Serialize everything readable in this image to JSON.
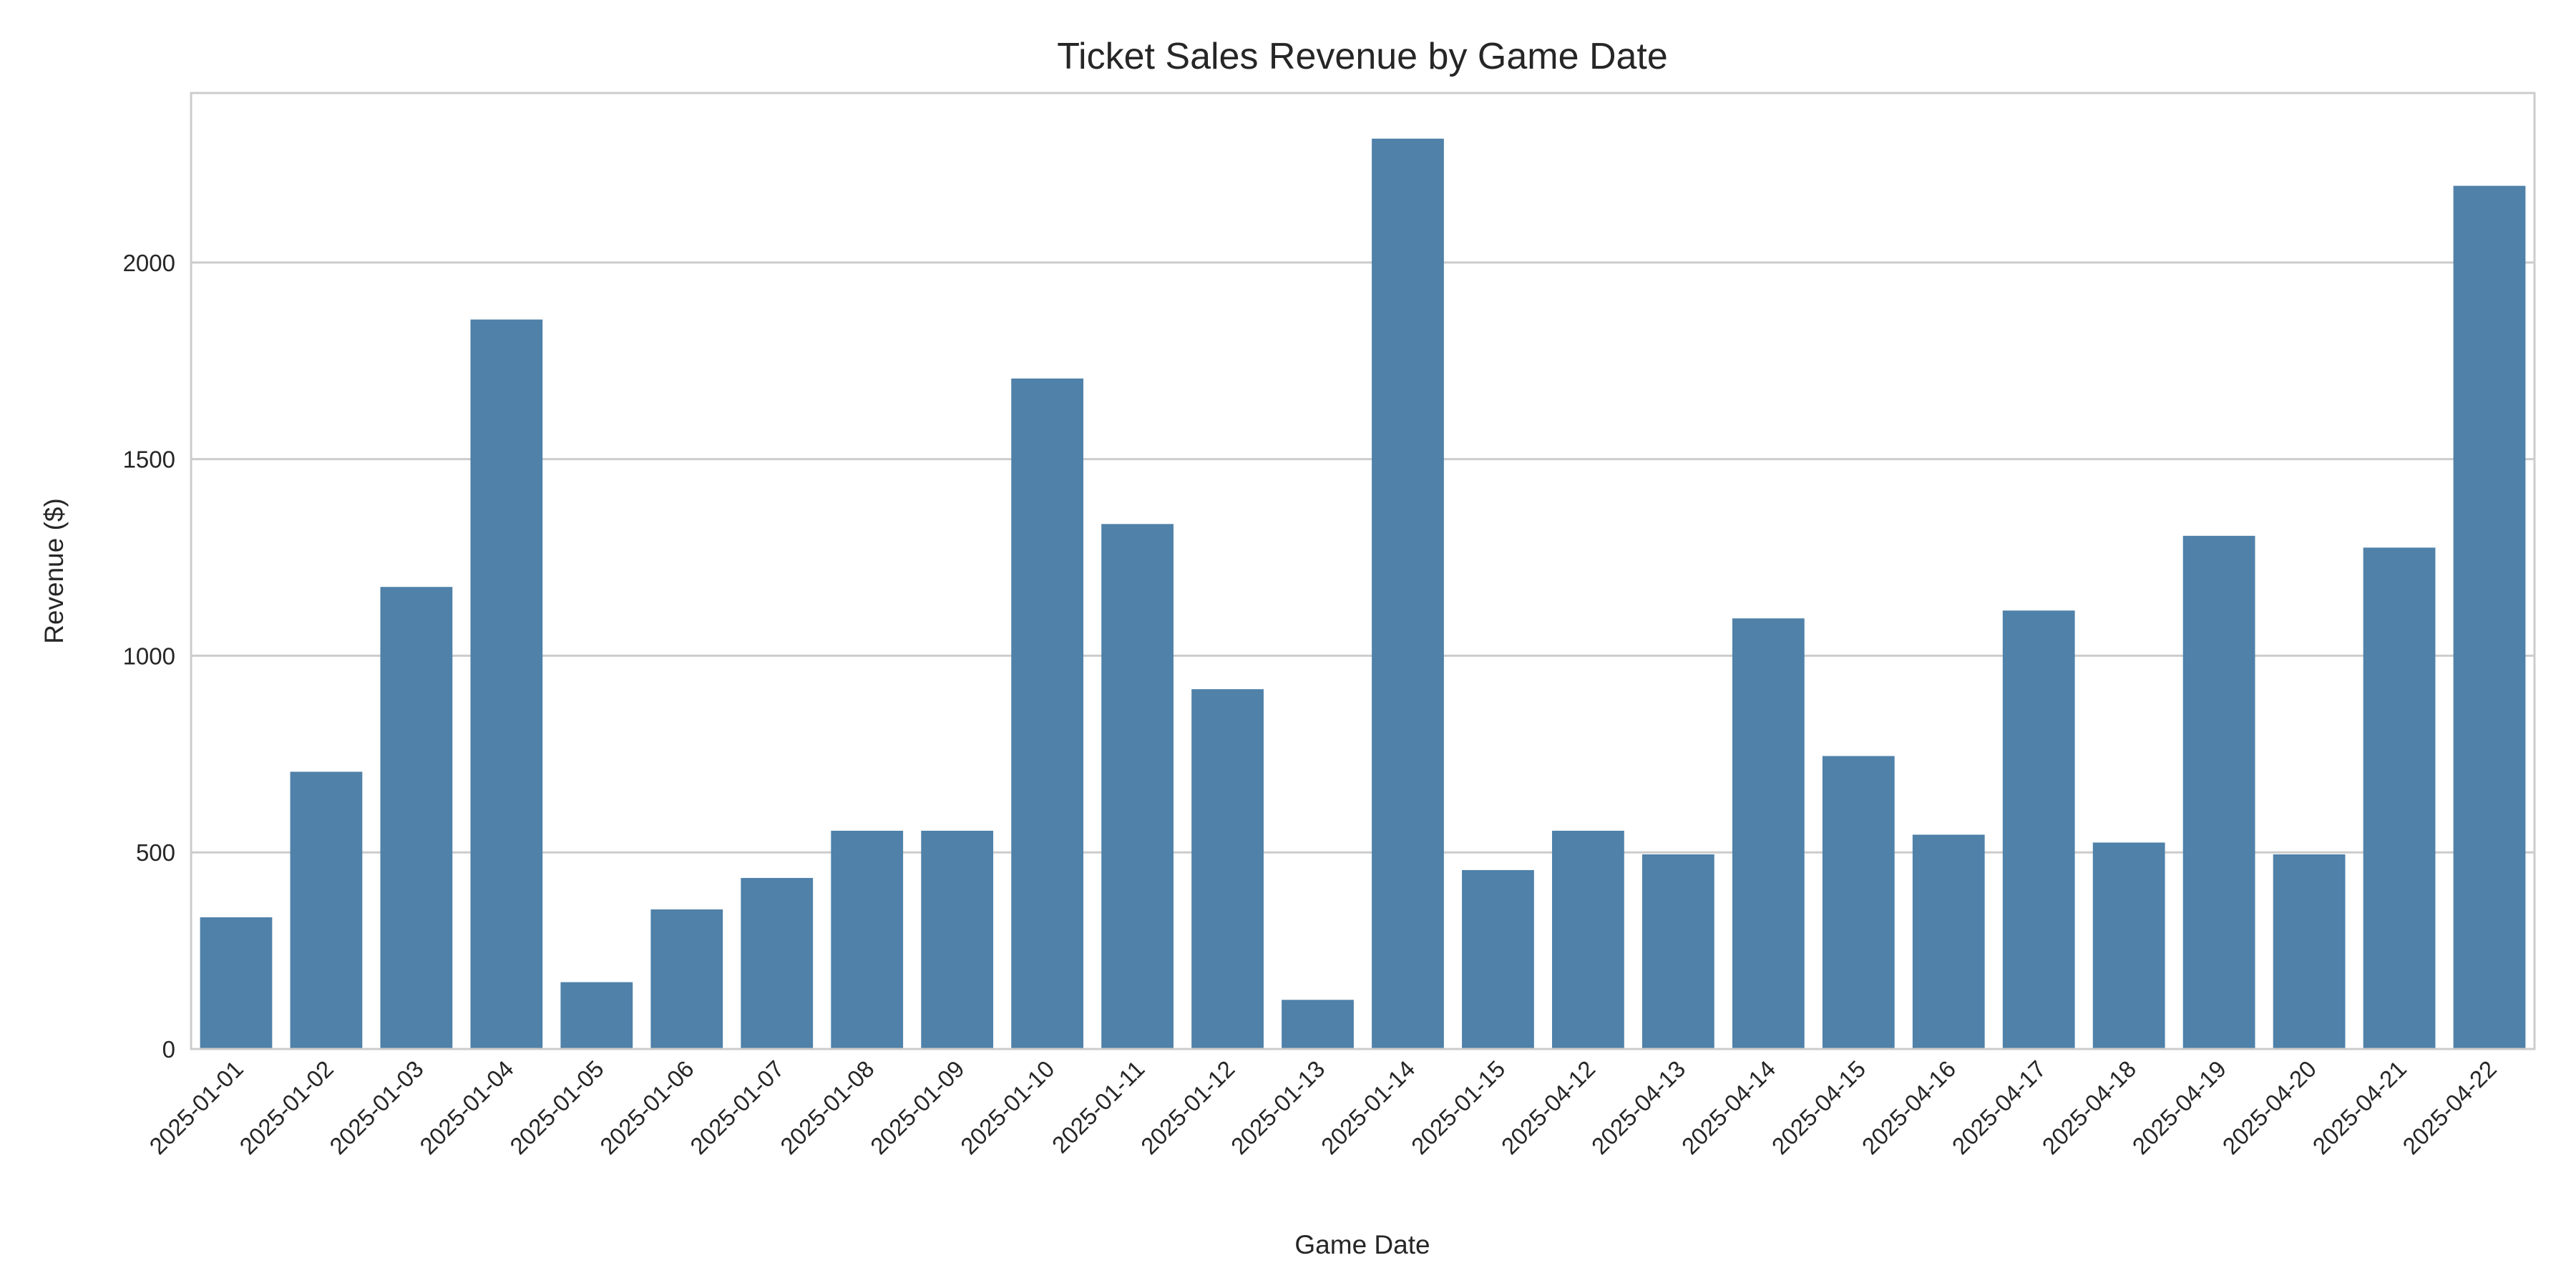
{
  "chart_data": {
    "type": "bar",
    "title": "Ticket Sales Revenue by Game Date",
    "xlabel": "Game Date",
    "ylabel": "Revenue ($)",
    "ylim": [
      0,
      2431
    ],
    "yticks": [
      0,
      500,
      1000,
      1500,
      2000
    ],
    "grid": "horizontal",
    "bar_color": "#4f81a9",
    "categories": [
      "2025-01-01",
      "2025-01-02",
      "2025-01-03",
      "2025-01-04",
      "2025-01-05",
      "2025-01-06",
      "2025-01-07",
      "2025-01-08",
      "2025-01-09",
      "2025-01-10",
      "2025-01-11",
      "2025-01-12",
      "2025-01-13",
      "2025-01-14",
      "2025-01-15",
      "2025-04-12",
      "2025-04-13",
      "2025-04-14",
      "2025-04-15",
      "2025-04-16",
      "2025-04-17",
      "2025-04-18",
      "2025-04-19",
      "2025-04-20",
      "2025-04-21",
      "2025-04-22"
    ],
    "values": [
      335,
      705,
      1175,
      1855,
      170,
      355,
      435,
      555,
      555,
      1705,
      1335,
      915,
      125,
      2315,
      455,
      555,
      495,
      1095,
      745,
      545,
      1115,
      525,
      1305,
      495,
      1275,
      2195
    ]
  }
}
